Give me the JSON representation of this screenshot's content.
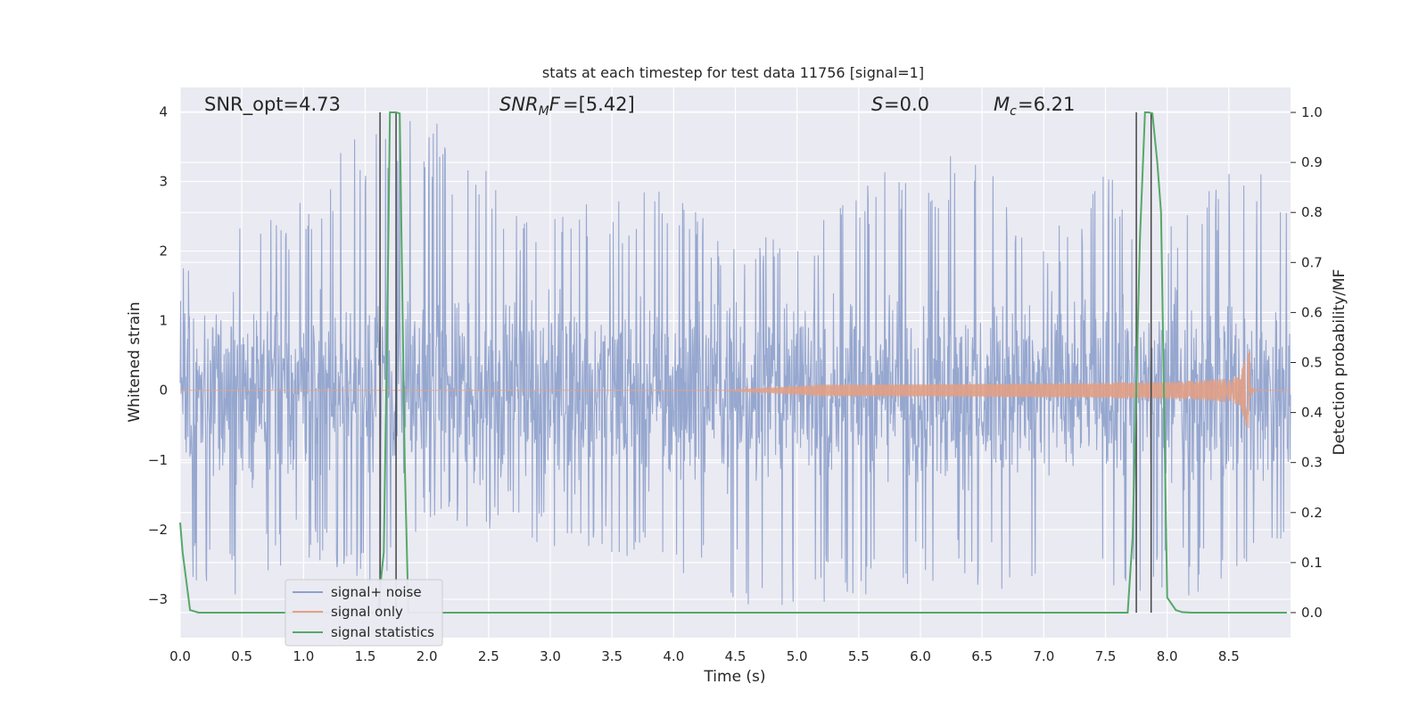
{
  "chart_data": {
    "type": "line",
    "title": "stats at each timestep for test data 11756 [signal=1]",
    "xlabel": "Time (s)",
    "ylabel_left": "Whitened strain",
    "ylabel_right": "Detection probability/MF",
    "xlim": [
      0.0,
      9.0
    ],
    "ylim_left": [
      -3.55,
      4.35
    ],
    "ylim_right": [
      -0.05,
      1.05
    ],
    "x_ticks": [
      "0.0",
      "0.5",
      "1.0",
      "1.5",
      "2.0",
      "2.5",
      "3.0",
      "3.5",
      "4.0",
      "4.5",
      "5.0",
      "5.5",
      "6.0",
      "6.5",
      "7.0",
      "7.5",
      "8.0",
      "8.5"
    ],
    "y_ticks_left": [
      "−3",
      "−2",
      "−1",
      "0",
      "1",
      "2",
      "3",
      "4"
    ],
    "y_ticks_right": [
      "0.0",
      "0.1",
      "0.2",
      "0.3",
      "0.4",
      "0.5",
      "0.6",
      "0.7",
      "0.8",
      "0.9",
      "1.0"
    ],
    "grid": true,
    "legend_placement": "lower-left",
    "annotations": {
      "snr_opt": "SNR_opt=4.73",
      "snr_mf": "=[5.42]",
      "s_val": "=0.0",
      "mc_val": "=6.21"
    },
    "colors": {
      "signal_noise": "#8da0cb",
      "signal_only": "#e1a085",
      "signal_stats": "#55a868",
      "vlines": "#444444",
      "background": "#eaeaf2"
    },
    "series": [
      {
        "name": "signal+ noise",
        "description_kind": "noisy strain",
        "envelope_upper": [
          [
            0.0,
            1.7
          ],
          [
            0.4,
            2.9
          ],
          [
            0.8,
            2.5
          ],
          [
            1.25,
            3.4
          ],
          [
            1.7,
            4.0
          ],
          [
            1.95,
            4.0
          ],
          [
            2.2,
            3.7
          ],
          [
            2.8,
            2.6
          ],
          [
            3.9,
            2.9
          ],
          [
            4.5,
            2.2
          ],
          [
            5.3,
            2.6
          ],
          [
            5.8,
            3.35
          ],
          [
            6.45,
            3.4
          ],
          [
            7.0,
            2.2
          ],
          [
            7.5,
            3.1
          ],
          [
            8.0,
            2.5
          ],
          [
            8.65,
            3.35
          ],
          [
            9.0,
            2.6
          ]
        ],
        "envelope_lower": [
          [
            0.0,
            -2.7
          ],
          [
            0.45,
            -3.0
          ],
          [
            0.9,
            -2.4
          ],
          [
            1.65,
            -2.9
          ],
          [
            2.0,
            -1.9
          ],
          [
            3.9,
            -2.6
          ],
          [
            4.8,
            -3.25
          ],
          [
            5.9,
            -2.8
          ],
          [
            7.8,
            -3.0
          ],
          [
            8.6,
            -3.0
          ],
          [
            9.0,
            -2.0
          ]
        ]
      },
      {
        "name": "signal only",
        "chirp_start": 4.4,
        "merger_time": 8.67,
        "peak_amplitude": 0.55
      },
      {
        "name": "signal statistics",
        "axis": "right",
        "x": [
          0.0,
          0.02,
          0.08,
          0.15,
          1.6,
          1.65,
          1.68,
          1.7,
          1.75,
          1.78,
          1.82,
          1.85,
          7.68,
          7.72,
          7.78,
          7.82,
          7.85,
          7.88,
          7.92,
          7.95,
          8.0,
          8.07,
          8.12,
          8.2,
          8.5,
          8.97
        ],
        "y": [
          0.18,
          0.12,
          0.005,
          0.0,
          0.0,
          0.12,
          0.6,
          1.0,
          1.0,
          0.998,
          0.3,
          0.0,
          0.0,
          0.15,
          0.75,
          1.0,
          1.0,
          0.998,
          0.9,
          0.8,
          0.03,
          0.005,
          0.001,
          0.0,
          0.0,
          0.0
        ]
      }
    ],
    "vertical_lines_x": [
      1.62,
      1.75,
      7.75,
      7.87
    ]
  }
}
